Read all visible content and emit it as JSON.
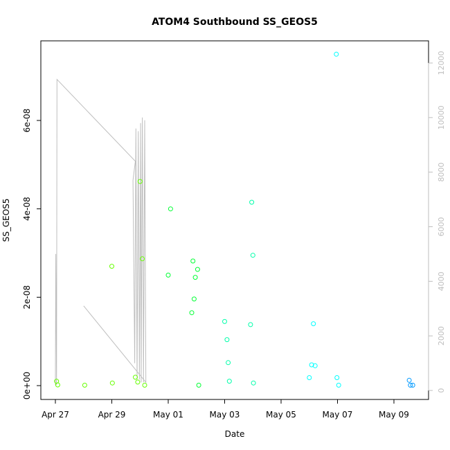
{
  "chart_data": {
    "type": "scatter",
    "title": "ATOM4 Southbound SS_GEOS5",
    "xlabel": "Date",
    "ylabel": "SS_GEOS5",
    "x_axis": {
      "min": "2018-04-27T00:00",
      "max": "2018-05-10T00:00",
      "ticks": [
        {
          "date": "2018-04-27T00:00",
          "label": "Apr 27"
        },
        {
          "date": "2018-04-29T00:00",
          "label": "Apr 29"
        },
        {
          "date": "2018-05-01T00:00",
          "label": "May 01"
        },
        {
          "date": "2018-05-03T00:00",
          "label": "May 03"
        },
        {
          "date": "2018-05-05T00:00",
          "label": "May 05"
        },
        {
          "date": "2018-05-07T00:00",
          "label": "May 07"
        },
        {
          "date": "2018-05-09T00:00",
          "label": "May 09"
        }
      ]
    },
    "y_axis": {
      "min": 0,
      "max": 7.6e-08,
      "ticks": [
        {
          "value": 0,
          "label": "0e+00"
        },
        {
          "value": 2e-08,
          "label": "2e-08"
        },
        {
          "value": 4e-08,
          "label": "4e-08"
        },
        {
          "value": 6e-08,
          "label": "6e-08"
        }
      ]
    },
    "y2_axis": {
      "color": "#bebebe",
      "min": 0,
      "max": 12300,
      "ticks": [
        {
          "value": 0,
          "label": "0"
        },
        {
          "value": 2000,
          "label": "2000"
        },
        {
          "value": 4000,
          "label": "4000"
        },
        {
          "value": 6000,
          "label": "6000"
        },
        {
          "value": 8000,
          "label": "8000"
        },
        {
          "value": 10000,
          "label": "10000"
        },
        {
          "value": 12000,
          "label": "12000"
        }
      ]
    },
    "altitude_line": {
      "color": "#bebebe",
      "points": [
        {
          "date": "2018-04-27T00:00",
          "value": 200
        },
        {
          "date": "2018-04-27T00:20",
          "value": 5000
        },
        {
          "date": "2018-04-27T01:00",
          "value": 200
        },
        {
          "date": "2018-04-27T01:20",
          "value": 11400
        },
        {
          "date": "2018-04-29T20:00",
          "value": 8400
        },
        {
          "date": "2018-04-29T18:00",
          "value": 7700
        },
        {
          "date": "2018-04-29T19:30",
          "value": 1000
        },
        {
          "date": "2018-04-29T20:30",
          "value": 9600
        },
        {
          "date": "2018-04-29T21:30",
          "value": 400
        },
        {
          "date": "2018-04-29T22:30",
          "value": 9500
        },
        {
          "date": "2018-04-29T23:30",
          "value": 400
        },
        {
          "date": "2018-04-30T00:30",
          "value": 9800
        },
        {
          "date": "2018-04-30T01:00",
          "value": 300
        },
        {
          "date": "2018-04-30T02:00",
          "value": 10000
        },
        {
          "date": "2018-04-30T03:00",
          "value": 300
        },
        {
          "date": "2018-04-30T04:00",
          "value": 9900
        },
        {
          "date": "2018-04-30T05:00",
          "value": 300
        },
        {
          "date": "2018-04-28T00:00",
          "value": 3100
        }
      ]
    },
    "series": [
      {
        "color": "#66ff00",
        "points": [
          {
            "date": "2018-04-27T01:00",
            "value": 1e-09
          },
          {
            "date": "2018-04-27T02:00",
            "value": 1.5e-10
          },
          {
            "date": "2018-04-28T01:00",
            "value": 1e-10
          },
          {
            "date": "2018-04-29T00:00",
            "value": 2.7e-08
          },
          {
            "date": "2018-04-29T00:30",
            "value": 6e-10
          },
          {
            "date": "2018-04-29T20:00",
            "value": 1.9e-09
          },
          {
            "date": "2018-04-29T22:00",
            "value": 8e-10
          },
          {
            "date": "2018-04-30T00:00",
            "value": 4.62e-08
          },
          {
            "date": "2018-04-30T02:00",
            "value": 2.87e-08
          },
          {
            "date": "2018-04-30T04:00",
            "value": 1e-10
          }
        ]
      },
      {
        "color": "#00ff33",
        "points": [
          {
            "date": "2018-05-01T00:00",
            "value": 2.5e-08
          },
          {
            "date": "2018-05-01T02:00",
            "value": 4e-08
          },
          {
            "date": "2018-05-01T20:00",
            "value": 1.65e-08
          },
          {
            "date": "2018-05-01T21:00",
            "value": 2.82e-08
          },
          {
            "date": "2018-05-01T22:00",
            "value": 1.96e-08
          },
          {
            "date": "2018-05-01T23:00",
            "value": 2.45e-08
          },
          {
            "date": "2018-05-02T01:00",
            "value": 2.63e-08
          },
          {
            "date": "2018-05-02T02:00",
            "value": 1e-10
          }
        ]
      },
      {
        "color": "#00ffaa",
        "points": [
          {
            "date": "2018-05-03T00:00",
            "value": 1.45e-08
          },
          {
            "date": "2018-05-03T02:00",
            "value": 1.04e-08
          },
          {
            "date": "2018-05-03T03:00",
            "value": 5.2e-09
          },
          {
            "date": "2018-05-03T04:00",
            "value": 1e-09
          },
          {
            "date": "2018-05-03T22:00",
            "value": 1.38e-08
          },
          {
            "date": "2018-05-03T23:00",
            "value": 4.15e-08
          },
          {
            "date": "2018-05-04T00:00",
            "value": 2.95e-08
          },
          {
            "date": "2018-05-04T00:30",
            "value": 6e-10
          }
        ]
      },
      {
        "color": "#00ffff",
        "points": [
          {
            "date": "2018-05-06T00:00",
            "value": 1.8e-09
          },
          {
            "date": "2018-05-06T02:00",
            "value": 4.7e-09
          },
          {
            "date": "2018-05-06T03:30",
            "value": 1.4e-08
          },
          {
            "date": "2018-05-06T05:00",
            "value": 4.5e-09
          },
          {
            "date": "2018-05-06T23:00",
            "value": 7.5e-08
          },
          {
            "date": "2018-05-06T23:30",
            "value": 1.8e-09
          },
          {
            "date": "2018-05-07T01:00",
            "value": 1e-10
          }
        ]
      },
      {
        "color": "#0099ff",
        "points": [
          {
            "date": "2018-05-09T13:00",
            "value": 1.2e-09
          },
          {
            "date": "2018-05-09T14:00",
            "value": 1e-10
          },
          {
            "date": "2018-05-09T16:00",
            "value": 1e-10
          }
        ]
      }
    ],
    "grid": false,
    "legend": "none"
  }
}
